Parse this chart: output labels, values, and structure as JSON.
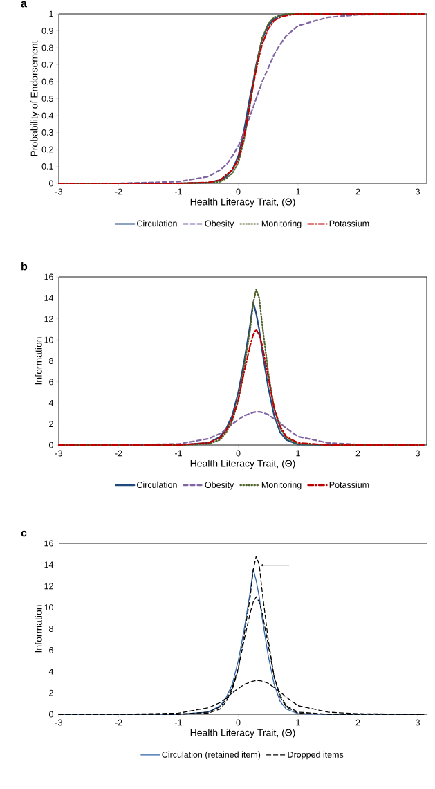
{
  "chart_data": [
    {
      "type": "line",
      "title": "a",
      "xlabel": "Health Literacy Trait, (Θ)",
      "ylabel": "Probability of Endorsement",
      "x": [
        -3,
        -2,
        -1,
        -0.5,
        -0.3,
        -0.2,
        -0.1,
        0,
        0.1,
        0.2,
        0.25,
        0.3,
        0.35,
        0.4,
        0.5,
        0.6,
        0.7,
        0.8,
        1,
        1.5,
        2,
        3.1
      ],
      "series": [
        {
          "name": "Circulation",
          "color": "#1f497d",
          "line_style": "solid",
          "values": [
            0,
            0,
            0,
            0.005,
            0.02,
            0.04,
            0.08,
            0.16,
            0.32,
            0.52,
            0.6,
            0.7,
            0.78,
            0.85,
            0.93,
            0.97,
            0.99,
            0.995,
            1,
            1,
            1,
            1
          ]
        },
        {
          "name": "Potassium",
          "color": "#c00000",
          "line_style": "dashdot",
          "values": [
            0,
            0,
            0,
            0.005,
            0.02,
            0.05,
            0.08,
            0.14,
            0.28,
            0.48,
            0.58,
            0.67,
            0.75,
            0.82,
            0.91,
            0.96,
            0.98,
            0.99,
            1,
            1,
            1,
            1
          ]
        },
        {
          "name": "Monitoring",
          "color": "#4f6228",
          "line_style": "dotted",
          "values": [
            0,
            0,
            0,
            0.003,
            0.01,
            0.03,
            0.06,
            0.12,
            0.26,
            0.47,
            0.58,
            0.69,
            0.78,
            0.86,
            0.94,
            0.98,
            0.99,
            1,
            1,
            1,
            1,
            1
          ]
        },
        {
          "name": "Obesity",
          "color": "#8064a2",
          "line_style": "dashed",
          "values": [
            0,
            0,
            0.01,
            0.04,
            0.08,
            0.11,
            0.16,
            0.22,
            0.3,
            0.4,
            0.45,
            0.5,
            0.55,
            0.6,
            0.68,
            0.76,
            0.82,
            0.87,
            0.93,
            0.98,
            0.995,
            1
          ]
        }
      ],
      "xlim": [
        -3,
        3.15
      ],
      "ylim": [
        0,
        1
      ],
      "xticks": [
        -3,
        -2,
        -1,
        0,
        1,
        2,
        3
      ],
      "yticks": [
        0,
        0.1,
        0.2,
        0.3,
        0.4,
        0.5,
        0.6,
        0.7,
        0.8,
        0.9,
        1
      ],
      "legend": "bottom"
    },
    {
      "type": "line",
      "title": "b",
      "xlabel": "Health Literacy Trait, (Θ)",
      "ylabel": "Information",
      "x": [
        -3,
        -2,
        -1,
        -0.5,
        -0.3,
        -0.2,
        -0.1,
        0,
        0.1,
        0.2,
        0.25,
        0.3,
        0.35,
        0.4,
        0.5,
        0.6,
        0.7,
        0.8,
        1,
        1.5,
        2,
        3.1
      ],
      "series": [
        {
          "name": "Circulation",
          "color": "#1f497d",
          "line_style": "solid",
          "values": [
            0,
            0,
            0,
            0.2,
            0.8,
            1.6,
            2.8,
            5,
            8,
            11.5,
            13.6,
            12.5,
            11,
            9,
            5.5,
            2.8,
            1.2,
            0.5,
            0.05,
            0,
            0,
            0
          ]
        },
        {
          "name": "Potassium",
          "color": "#c00000",
          "line_style": "dashdot",
          "values": [
            0,
            0,
            0,
            0.2,
            0.7,
            1.4,
            2.5,
            4.3,
            7,
            9.5,
            10.5,
            11,
            10.5,
            9.5,
            6.5,
            3.5,
            1.8,
            0.8,
            0.2,
            0,
            0,
            0
          ]
        },
        {
          "name": "Monitoring",
          "color": "#4f6228",
          "line_style": "dotted",
          "values": [
            0,
            0,
            0,
            0.1,
            0.5,
            1.2,
            2.3,
            4.2,
            7.5,
            11,
            13.5,
            14.8,
            14,
            11.5,
            7,
            3.5,
            1.6,
            0.7,
            0.1,
            0,
            0,
            0
          ]
        },
        {
          "name": "Obesity",
          "color": "#8064a2",
          "line_style": "dashed",
          "values": [
            0,
            0,
            0.1,
            0.6,
            1.1,
            1.5,
            2,
            2.4,
            2.8,
            3,
            3.1,
            3.15,
            3.15,
            3.1,
            2.9,
            2.5,
            2.1,
            1.6,
            0.8,
            0.2,
            0.05,
            0
          ]
        }
      ],
      "xlim": [
        -3,
        3.15
      ],
      "ylim": [
        0,
        16
      ],
      "xticks": [
        -3,
        -2,
        -1,
        0,
        1,
        2,
        3
      ],
      "yticks": [
        0,
        2,
        4,
        6,
        8,
        10,
        12,
        14,
        16
      ],
      "legend": "bottom"
    },
    {
      "type": "line",
      "title": "c",
      "xlabel": "Health Literacy Trait, (Θ)",
      "ylabel": "Information",
      "x": [
        -3,
        -2,
        -1,
        -0.5,
        -0.3,
        -0.2,
        -0.1,
        0,
        0.1,
        0.2,
        0.25,
        0.3,
        0.35,
        0.4,
        0.5,
        0.6,
        0.7,
        0.8,
        1,
        1.5,
        2,
        3.1
      ],
      "series": [
        {
          "name": "Circulation (retained item)",
          "color": "#2e64a8",
          "line_style": "solid",
          "values": [
            0,
            0,
            0,
            0.2,
            0.8,
            1.6,
            2.8,
            5,
            8,
            11.5,
            13.6,
            12.5,
            11,
            9,
            5.5,
            2.8,
            1.2,
            0.5,
            0.05,
            0,
            0,
            0
          ]
        },
        {
          "name": "Dropped items",
          "color": "#000000",
          "line_style": "dashed",
          "values": [
            0,
            0,
            0,
            0.2,
            0.7,
            1.4,
            2.5,
            4.3,
            7,
            9.5,
            10.5,
            11,
            10.5,
            9.5,
            6.5,
            3.5,
            1.8,
            0.8,
            0.2,
            0,
            0,
            0
          ]
        },
        {
          "color": "#000000",
          "line_style": "dashed",
          "values": [
            0,
            0,
            0,
            0.1,
            0.5,
            1.2,
            2.3,
            4.2,
            7.5,
            11,
            13.5,
            14.8,
            14,
            11.5,
            7,
            3.5,
            1.6,
            0.7,
            0.1,
            0,
            0,
            0
          ]
        },
        {
          "color": "#000000",
          "line_style": "dashed",
          "values": [
            0,
            0,
            0.1,
            0.6,
            1.1,
            1.5,
            2,
            2.4,
            2.8,
            3,
            3.1,
            3.15,
            3.15,
            3.1,
            2.9,
            2.5,
            2.1,
            1.6,
            0.8,
            0.2,
            0.05,
            0
          ]
        }
      ],
      "xlim": [
        -3,
        3.15
      ],
      "ylim": [
        0,
        16
      ],
      "xticks": [
        -3,
        -2,
        -1,
        0,
        1,
        2,
        3
      ],
      "yticks": [
        0,
        2,
        4,
        6,
        8,
        10,
        12,
        14,
        16
      ],
      "legend": "bottom"
    }
  ]
}
